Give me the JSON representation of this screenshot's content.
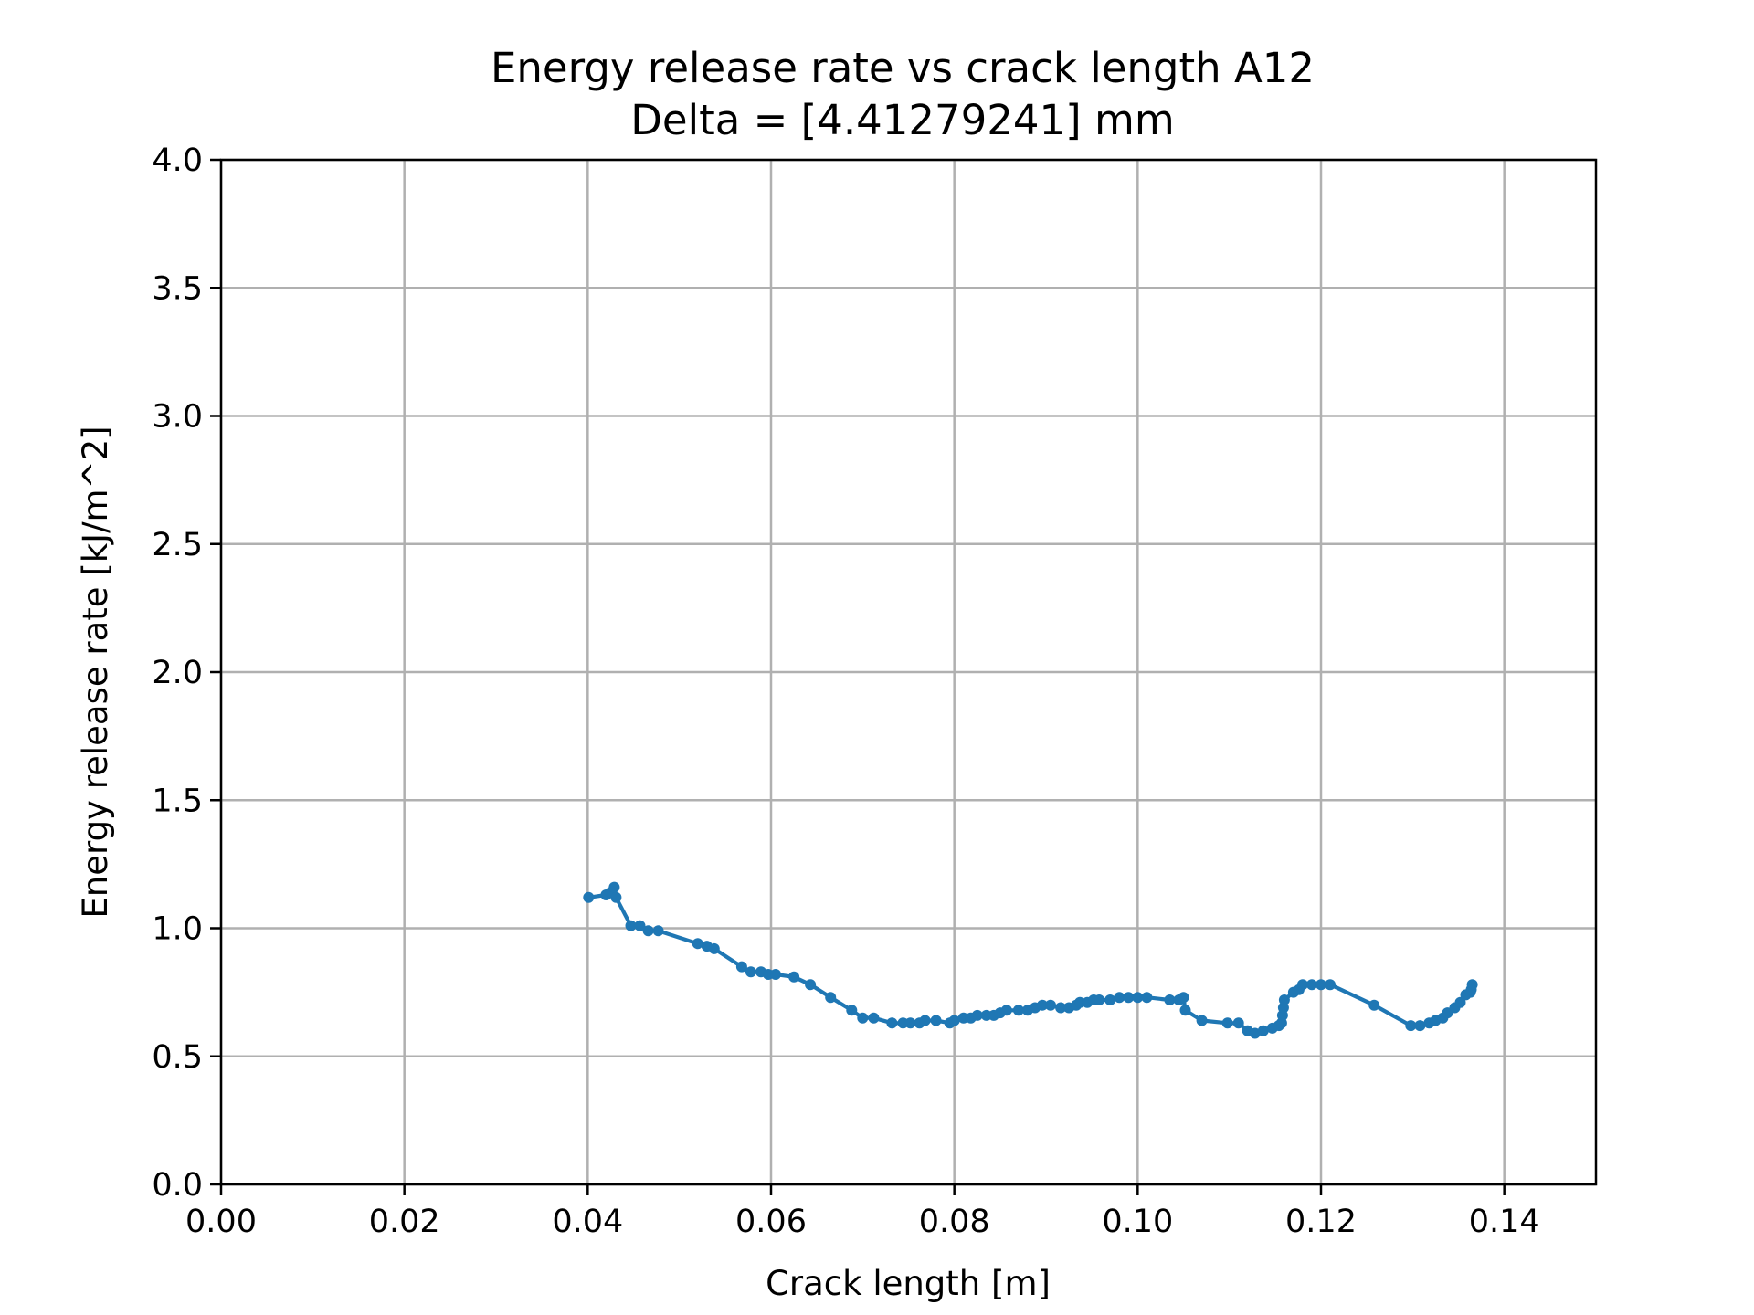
{
  "colors": {
    "series": "#1f77b4",
    "grid": "#b0b0b0",
    "axes": "#000000"
  },
  "chart_data": {
    "type": "line",
    "title": "Energy release rate vs crack length A12",
    "subtitle": "Delta = [4.41279241] mm",
    "xlabel": "Crack length [m]",
    "ylabel": "Energy release rate [kJ/m^2]",
    "xlim": [
      0.0,
      0.15
    ],
    "ylim": [
      0.0,
      4.0
    ],
    "xticks": [
      "0.00",
      "0.02",
      "0.04",
      "0.06",
      "0.08",
      "0.10",
      "0.12",
      "0.14"
    ],
    "yticks": [
      "0.0",
      "0.5",
      "1.0",
      "1.5",
      "2.0",
      "2.5",
      "3.0",
      "3.5",
      "4.0"
    ],
    "grid": true,
    "marker": "circle",
    "series": [
      {
        "x": [
          0.0401,
          0.042,
          0.0425,
          0.0429,
          0.0431,
          0.0447,
          0.0457,
          0.0466,
          0.0477,
          0.052,
          0.053,
          0.0538,
          0.0568,
          0.0578,
          0.0589,
          0.0597,
          0.0605,
          0.0625,
          0.0643,
          0.0665,
          0.0688,
          0.07,
          0.0712,
          0.0732,
          0.0744,
          0.0752,
          0.0762,
          0.0768,
          0.078,
          0.0795,
          0.08,
          0.081,
          0.0818,
          0.0825,
          0.0835,
          0.0843,
          0.085,
          0.0857,
          0.087,
          0.088,
          0.0888,
          0.0896,
          0.0905,
          0.0916,
          0.0925,
          0.0933,
          0.0937,
          0.0945,
          0.0952,
          0.0958,
          0.097,
          0.098,
          0.099,
          0.1,
          0.101,
          0.1035,
          0.1045,
          0.105,
          0.1052,
          0.107,
          0.1098,
          0.111,
          0.112,
          0.1128,
          0.1137,
          0.1147,
          0.1154,
          0.1157,
          0.1158,
          0.1159,
          0.116,
          0.117,
          0.1176,
          0.118,
          0.119,
          0.12,
          0.121,
          0.1258,
          0.1298,
          0.1308,
          0.1318,
          0.1325,
          0.1333,
          0.1338,
          0.1346,
          0.1352,
          0.1358,
          0.1363,
          0.1364,
          0.1365
        ],
        "y": [
          1.12,
          1.13,
          1.14,
          1.16,
          1.12,
          1.01,
          1.01,
          0.99,
          0.99,
          0.94,
          0.93,
          0.92,
          0.85,
          0.83,
          0.83,
          0.82,
          0.82,
          0.81,
          0.78,
          0.73,
          0.68,
          0.65,
          0.65,
          0.63,
          0.63,
          0.63,
          0.63,
          0.64,
          0.64,
          0.63,
          0.64,
          0.65,
          0.65,
          0.66,
          0.66,
          0.66,
          0.67,
          0.68,
          0.68,
          0.68,
          0.69,
          0.7,
          0.7,
          0.69,
          0.69,
          0.7,
          0.71,
          0.71,
          0.72,
          0.72,
          0.72,
          0.73,
          0.73,
          0.73,
          0.73,
          0.72,
          0.72,
          0.73,
          0.68,
          0.64,
          0.63,
          0.63,
          0.6,
          0.59,
          0.6,
          0.61,
          0.62,
          0.63,
          0.66,
          0.69,
          0.72,
          0.75,
          0.76,
          0.78,
          0.78,
          0.78,
          0.78,
          0.7,
          0.62,
          0.62,
          0.63,
          0.64,
          0.65,
          0.67,
          0.69,
          0.71,
          0.74,
          0.75,
          0.76,
          0.78
        ]
      }
    ]
  }
}
